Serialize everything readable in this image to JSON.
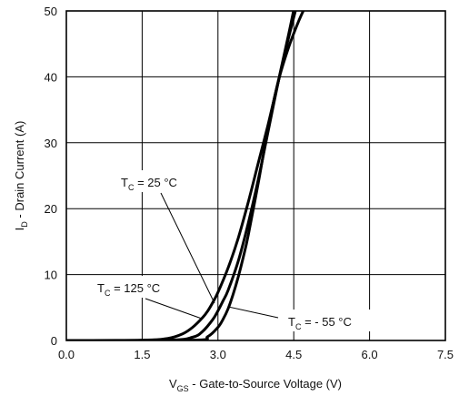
{
  "chart_data": {
    "type": "line",
    "title": "",
    "xlabel": {
      "main": "V",
      "sub": "GS",
      "rest": " - Gate-to-Source Voltage (V)"
    },
    "ylabel": {
      "main": "I",
      "sub": "D",
      "rest": " - Drain Current (A)"
    },
    "xlim": [
      0,
      7.5
    ],
    "ylim": [
      0,
      50
    ],
    "xticks": [
      0,
      1.5,
      3.0,
      4.5,
      6.0,
      7.5
    ],
    "xtick_labels": [
      "0.0",
      "1.5",
      "3.0",
      "4.5",
      "6.0",
      "7.5"
    ],
    "yticks": [
      0,
      10,
      20,
      30,
      40,
      50
    ],
    "ytick_labels": [
      "0",
      "10",
      "20",
      "30",
      "40",
      "50"
    ],
    "grid": true,
    "series": [
      {
        "name": "T_C = 125 °C",
        "x": [
          0,
          1.5,
          2.0,
          2.3,
          2.5,
          2.7,
          2.8,
          2.9,
          3.0,
          3.2,
          3.4,
          3.6,
          3.8,
          4.0,
          4.2,
          4.4,
          4.6
        ],
        "y": [
          0,
          0.05,
          0.3,
          1.0,
          2.0,
          3.5,
          4.5,
          5.8,
          7.3,
          11,
          15.5,
          21,
          27,
          33,
          39.5,
          46,
          52
        ]
      },
      {
        "name": "T_C = 25 °C",
        "x": [
          0,
          2.0,
          2.5,
          2.7,
          2.9,
          3.0,
          3.1,
          3.2,
          3.4,
          3.6,
          3.8,
          4.0,
          4.2,
          4.4,
          4.55
        ],
        "y": [
          0,
          0.05,
          0.5,
          1.4,
          3.2,
          4.5,
          6.0,
          7.6,
          12,
          17.8,
          24.5,
          32,
          39.5,
          46.5,
          52
        ]
      },
      {
        "name": "T_C = - 55 °C",
        "x": [
          0,
          2.5,
          2.8,
          3.0,
          3.1,
          3.2,
          3.3,
          3.4,
          3.5,
          3.6,
          3.8,
          4.0,
          4.2,
          4.4,
          4.6,
          4.75
        ],
        "y": [
          0,
          0.05,
          0.6,
          2.0,
          3.2,
          4.8,
          7.0,
          9.6,
          12.6,
          16.0,
          24,
          32.5,
          39.5,
          44.5,
          48.5,
          51
        ]
      }
    ],
    "annotations": [
      {
        "main": "T",
        "sub": "C",
        "rest": " = 25 °C"
      },
      {
        "main": "T",
        "sub": "C",
        "rest": " = 125 °C"
      },
      {
        "main": "T",
        "sub": "C",
        "rest": " = - 55 °C"
      }
    ]
  }
}
